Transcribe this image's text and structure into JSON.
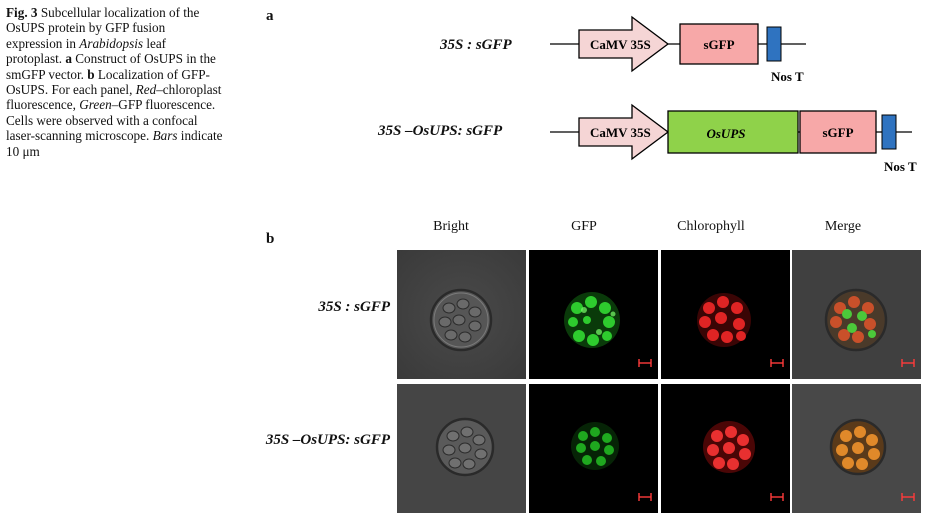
{
  "caption": {
    "fig_label": "Fig. 3",
    "line1": "Subcellular localization of the OsUPS protein by GFP fusion expression in",
    "line2_italic": "Arabidopsis",
    "line2_rest": " leaf protoplast.",
    "a_label": "a",
    "a_text": " Construct of OsUPS in the smGFP vector. ",
    "b_label": "b",
    "b_text": " Localization of GFP-OsUPS. For each panel,",
    "red_italic": "Red",
    "red_text": "–chloroplast fluorescence,",
    "green_italic": "Green",
    "green_text": "–GFP fluorescence. Cells were observed with a confocal laser-scanning microscope.",
    "bars_italic": "Bars",
    "bars_text": " indicate 10 μm"
  },
  "panel_a": {
    "letter": "a",
    "construct1": {
      "label": "35S : sGFP",
      "promoter": "CaMV 35S",
      "gene": "sGFP",
      "terminator": "Nos T"
    },
    "construct2": {
      "label": "35S –OsUPS: sGFP",
      "promoter": "CaMV 35S",
      "insert": "OsUPS",
      "gene": "sGFP",
      "terminator": "Nos T"
    },
    "colors": {
      "promoter": "#f5d5d5",
      "gene": "#f7a8a8",
      "insert": "#8fd24a",
      "terminator": "#2f73c0"
    }
  },
  "panel_b": {
    "letter": "b",
    "columns": [
      "Bright",
      "GFP",
      "Chlorophyll",
      "Merge"
    ],
    "rows": [
      "35S : sGFP",
      "35S –OsUPS: sGFP"
    ],
    "scale_text": "10 μm"
  }
}
